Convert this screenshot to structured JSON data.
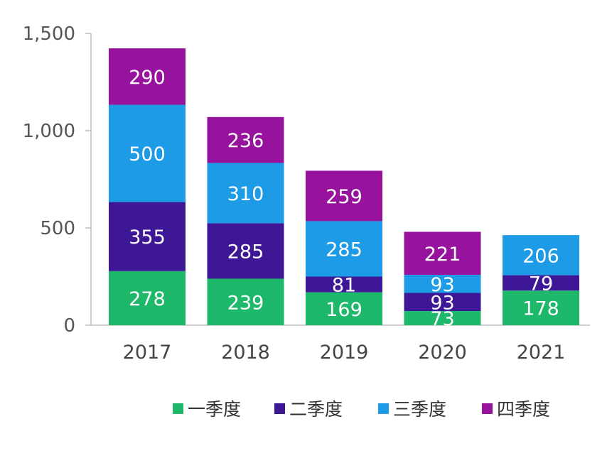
{
  "chart_data": {
    "type": "bar",
    "stacked": true,
    "categories": [
      "2017",
      "2018",
      "2019",
      "2020",
      "2021"
    ],
    "series": [
      {
        "name": "一季度",
        "color": "#1db86a",
        "values": [
          278,
          239,
          169,
          73,
          178
        ]
      },
      {
        "name": "二季度",
        "color": "#3d1796",
        "values": [
          355,
          285,
          81,
          93,
          79
        ]
      },
      {
        "name": "三季度",
        "color": "#1e9be6",
        "values": [
          500,
          310,
          285,
          93,
          206
        ]
      },
      {
        "name": "四季度",
        "color": "#97139e",
        "values": [
          290,
          236,
          259,
          221,
          0
        ]
      }
    ],
    "data_labels": [
      [
        "278",
        "239",
        "169",
        "73",
        "178"
      ],
      [
        "355",
        "285",
        "81",
        "93",
        "79"
      ],
      [
        "500",
        "310",
        "285",
        "93",
        "206"
      ],
      [
        "290",
        "236",
        "259",
        "221",
        ""
      ]
    ],
    "yticks": [
      0,
      500,
      1000,
      1500
    ],
    "ytick_labels": [
      "0",
      "500",
      "1,000",
      "1,500"
    ],
    "ylim": [
      0,
      1500
    ],
    "grid": false,
    "legend_position": "bottom"
  }
}
